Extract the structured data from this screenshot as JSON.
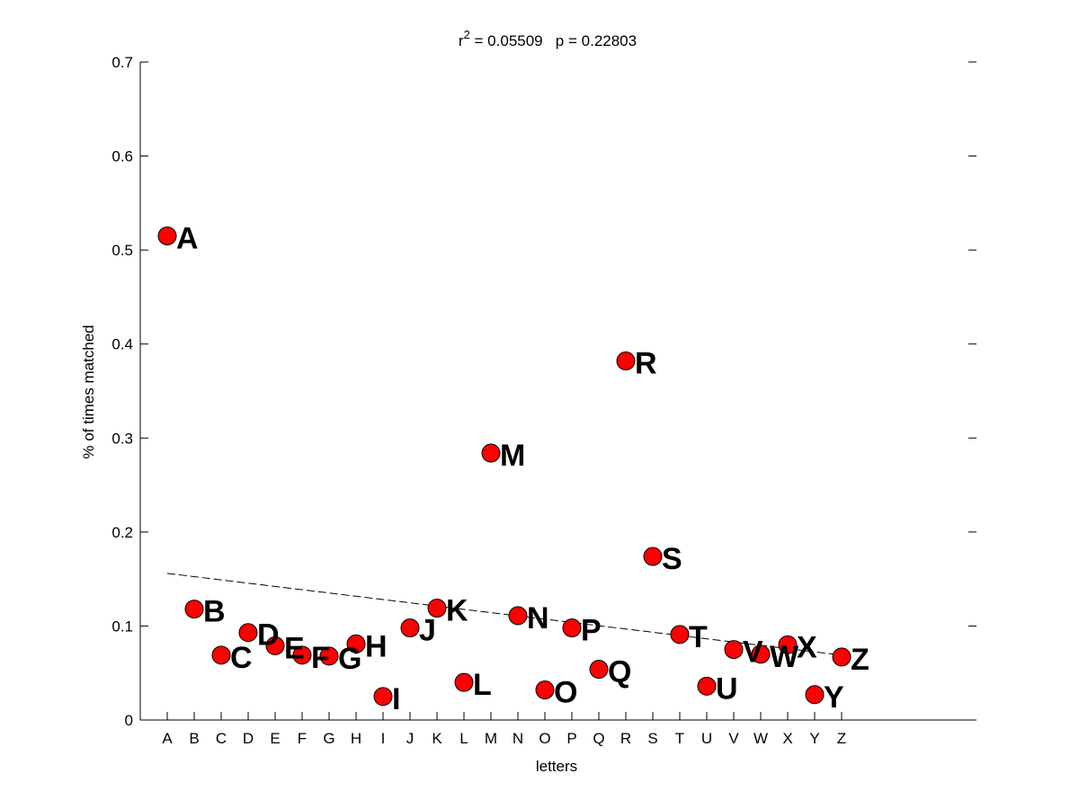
{
  "chart_data": {
    "type": "scatter",
    "title": {
      "prefix": "r",
      "superscript": "2",
      "r2_text": " = 0.05509",
      "p_text": "   p = 0.22803"
    },
    "xlabel": "letters",
    "ylabel": "% of times matched",
    "ylim": [
      0,
      0.7
    ],
    "y_ticks": [
      "0",
      "0.1",
      "0.2",
      "0.3",
      "0.4",
      "0.5",
      "0.6",
      "0.7"
    ],
    "x_range": [
      0,
      31
    ],
    "categories": [
      "A",
      "B",
      "C",
      "D",
      "E",
      "F",
      "G",
      "H",
      "I",
      "J",
      "K",
      "L",
      "M",
      "N",
      "O",
      "P",
      "Q",
      "R",
      "S",
      "T",
      "U",
      "V",
      "W",
      "X",
      "Y",
      "Z"
    ],
    "values": [
      0.515,
      0.118,
      0.069,
      0.093,
      0.079,
      0.069,
      0.068,
      0.081,
      0.025,
      0.098,
      0.119,
      0.04,
      0.284,
      0.111,
      0.032,
      0.098,
      0.054,
      0.382,
      0.174,
      0.091,
      0.036,
      0.075,
      0.07,
      0.08,
      0.027,
      0.067
    ],
    "trend_line": {
      "x": [
        1,
        26
      ],
      "y": [
        0.156,
        0.069
      ],
      "style": "dashed"
    },
    "marker_color": "#ff0000",
    "grid": false
  }
}
